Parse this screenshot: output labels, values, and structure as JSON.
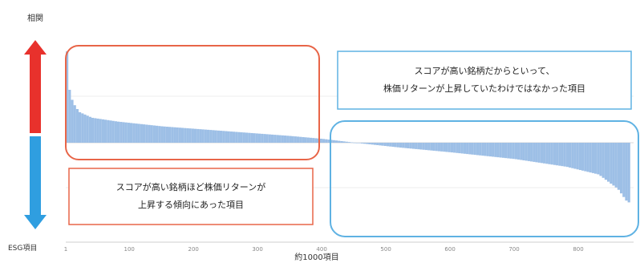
{
  "chart_data": {
    "type": "bar",
    "title": "",
    "xlabel": "約1000項目",
    "ylabel_top": "相関",
    "ylabel_bottom": "ESG項目",
    "x_ticks": [
      "1",
      "100",
      "200",
      "300",
      "400",
      "500",
      "600",
      "700",
      "800"
    ],
    "x_range": [
      1,
      880
    ],
    "y_range": [
      -1,
      1
    ],
    "bar_color": "#9dbfe6",
    "curve_description_points": [
      [
        1,
        0.95
      ],
      [
        5,
        0.55
      ],
      [
        10,
        0.42
      ],
      [
        20,
        0.32
      ],
      [
        40,
        0.26
      ],
      [
        80,
        0.22
      ],
      [
        150,
        0.17
      ],
      [
        250,
        0.12
      ],
      [
        350,
        0.07
      ],
      [
        400,
        0.04
      ],
      [
        450,
        0.0
      ],
      [
        520,
        -0.05
      ],
      [
        600,
        -0.1
      ],
      [
        700,
        -0.17
      ],
      [
        780,
        -0.25
      ],
      [
        830,
        -0.33
      ],
      [
        860,
        -0.48
      ],
      [
        875,
        -0.62
      ]
    ],
    "annotations": {
      "top_right_line1": "スコアが高い銘柄だからといって、",
      "top_right_line2": "株価リターンが上昇していたわけではなかった項目",
      "bottom_left_line1": "スコアが高い銘柄ほど株価リターンが",
      "bottom_left_line2": "上昇する傾向にあった項目"
    }
  },
  "colors": {
    "red_arrow": "#e8312c",
    "blue_arrow": "#2f9ee0",
    "red_box": "#e86548",
    "blue_box": "#5fb2e3"
  }
}
